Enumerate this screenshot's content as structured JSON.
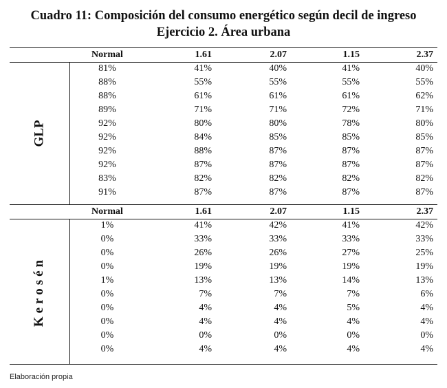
{
  "title": {
    "line1": "Cuadro 11: Composición del consumo energético según decil de ingreso",
    "line2": "Ejercicio 2. Área urbana"
  },
  "table": {
    "headers": [
      "Normal",
      "1.61",
      "2.07",
      "1.15",
      "2.37"
    ],
    "glp": {
      "label": "GLP",
      "rows": [
        [
          "81%",
          "41%",
          "40%",
          "41%",
          "40%"
        ],
        [
          "88%",
          "55%",
          "55%",
          "55%",
          "55%"
        ],
        [
          "88%",
          "61%",
          "61%",
          "61%",
          "62%"
        ],
        [
          "89%",
          "71%",
          "71%",
          "72%",
          "71%"
        ],
        [
          "92%",
          "80%",
          "80%",
          "78%",
          "80%"
        ],
        [
          "92%",
          "84%",
          "85%",
          "85%",
          "85%"
        ],
        [
          "92%",
          "88%",
          "87%",
          "87%",
          "87%"
        ],
        [
          "92%",
          "87%",
          "87%",
          "87%",
          "87%"
        ],
        [
          "83%",
          "82%",
          "82%",
          "82%",
          "82%"
        ],
        [
          "91%",
          "87%",
          "87%",
          "87%",
          "87%"
        ]
      ]
    },
    "kerosen": {
      "label": "Kerosén",
      "rows": [
        [
          "1%",
          "41%",
          "42%",
          "41%",
          "42%"
        ],
        [
          "0%",
          "33%",
          "33%",
          "33%",
          "33%"
        ],
        [
          "0%",
          "26%",
          "26%",
          "27%",
          "25%"
        ],
        [
          "0%",
          "19%",
          "19%",
          "19%",
          "19%"
        ],
        [
          "1%",
          "13%",
          "13%",
          "14%",
          "13%"
        ],
        [
          "0%",
          "7%",
          "7%",
          "7%",
          "6%"
        ],
        [
          "0%",
          "4%",
          "4%",
          "5%",
          "4%"
        ],
        [
          "0%",
          "4%",
          "4%",
          "4%",
          "4%"
        ],
        [
          "0%",
          "0%",
          "0%",
          "0%",
          "0%"
        ],
        [
          "0%",
          "4%",
          "4%",
          "4%",
          "4%"
        ]
      ]
    }
  },
  "footnote": "Elaboración propia"
}
